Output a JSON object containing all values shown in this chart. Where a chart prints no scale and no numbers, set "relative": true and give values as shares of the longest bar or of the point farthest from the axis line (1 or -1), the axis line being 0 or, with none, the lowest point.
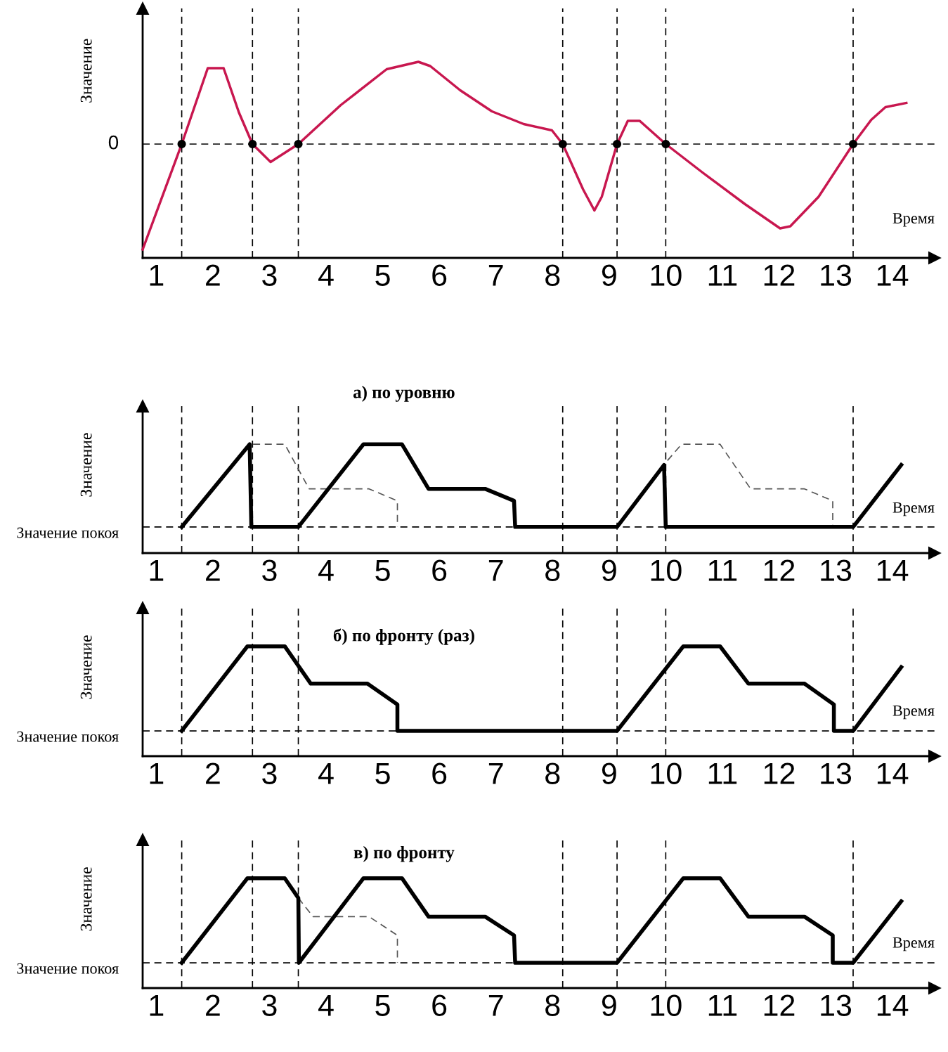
{
  "chart_data": [
    {
      "type": "line",
      "xlabel": "Время",
      "ylabel": "Значение",
      "relative": true,
      "tick_labels": "x",
      "grid": false,
      "legend": false,
      "xlim": [
        0.76,
        14.75
      ],
      "xticks": [
        1,
        2,
        3,
        4,
        5,
        6,
        7,
        8,
        9,
        10,
        11,
        12,
        13,
        14
      ],
      "ref_lines": [
        {
          "axis": "y",
          "value": 0,
          "label": "0",
          "line_style": "dashed"
        },
        {
          "axis": "x",
          "value": 1.45,
          "line_style": "dashed"
        },
        {
          "axis": "x",
          "value": 2.7,
          "line_style": "dashed"
        },
        {
          "axis": "x",
          "value": 3.51,
          "line_style": "dashed"
        },
        {
          "axis": "x",
          "value": 8.18,
          "line_style": "dashed"
        },
        {
          "axis": "x",
          "value": 9.14,
          "line_style": "dashed"
        },
        {
          "axis": "x",
          "value": 10.0,
          "line_style": "dashed"
        },
        {
          "axis": "x",
          "value": 13.31,
          "line_style": "dashed"
        }
      ],
      "series": [
        {
          "color": "#c8174f",
          "line_style": "solid",
          "x": [
            0.76,
            1.45,
            1.91,
            2.19,
            2.46,
            2.7,
            3.02,
            3.51,
            4.26,
            5.07,
            5.63,
            5.84,
            6.37,
            6.93,
            7.49,
            7.99,
            8.18,
            8.54,
            8.74,
            8.87,
            9.14,
            9.33,
            9.54,
            10.0,
            10.65,
            11.4,
            12.02,
            12.2,
            12.7,
            13.31,
            13.63,
            13.88,
            14.25
          ],
          "values": [
            -1.0,
            0,
            0.72,
            0.72,
            0.3,
            0,
            -0.17,
            0,
            0.37,
            0.71,
            0.78,
            0.74,
            0.51,
            0.31,
            0.19,
            0.13,
            0,
            -0.43,
            -0.63,
            -0.5,
            0,
            0.22,
            0.22,
            0,
            -0.27,
            -0.57,
            -0.8,
            -0.78,
            -0.5,
            0,
            0.23,
            0.35,
            0.39
          ]
        },
        {
          "type": "scatter",
          "color": "#000000",
          "marker": "circle",
          "x": [
            1.45,
            2.7,
            3.51,
            8.18,
            9.14,
            10.0,
            13.31
          ],
          "values": [
            0,
            0,
            0,
            0,
            0,
            0,
            0
          ]
        }
      ]
    },
    {
      "type": "line",
      "title": "а) по уровню",
      "xlabel": "Время",
      "ylabel": "Значение",
      "relative": true,
      "tick_labels": "x",
      "grid": false,
      "legend": false,
      "xlim": [
        0.76,
        14.75
      ],
      "xticks": [
        1,
        2,
        3,
        4,
        5,
        6,
        7,
        8,
        9,
        10,
        11,
        12,
        13,
        14
      ],
      "ref_lines": [
        {
          "axis": "y",
          "value": 0.24,
          "label": "Значение покоя",
          "line_style": "dashed"
        },
        {
          "axis": "x",
          "value": 1.45,
          "line_style": "dashed"
        },
        {
          "axis": "x",
          "value": 2.7,
          "line_style": "dashed"
        },
        {
          "axis": "x",
          "value": 3.51,
          "line_style": "dashed"
        },
        {
          "axis": "x",
          "value": 8.18,
          "line_style": "dashed"
        },
        {
          "axis": "x",
          "value": 9.14,
          "line_style": "dashed"
        },
        {
          "axis": "x",
          "value": 10.0,
          "line_style": "dashed"
        },
        {
          "axis": "x",
          "value": 13.31,
          "line_style": "dashed"
        }
      ],
      "series": [
        {
          "color": "#555555",
          "line_style": "dashed",
          "x": [
            2.71,
            3.27,
            3.7,
            4.76,
            5.26,
            5.26
          ],
          "values": [
            1,
            1,
            0.59,
            0.59,
            0.48,
            0.24
          ]
        },
        {
          "color": "#555555",
          "line_style": "dashed",
          "x": [
            10.03,
            10.28,
            10.96,
            11.5,
            12.45,
            12.95,
            12.95
          ],
          "values": [
            0.85,
            1,
            1,
            0.59,
            0.59,
            0.48,
            0.24
          ]
        },
        {
          "color": "#000000",
          "line_style": "solid",
          "x": [
            1.45,
            2.65,
            2.68,
            3.51,
            4.66,
            5.34,
            5.81,
            6.81,
            7.32,
            7.34,
            9.14,
            9.97,
            10.0,
            13.31,
            14.16
          ],
          "values": [
            0.24,
            1,
            0.24,
            0.24,
            1,
            1,
            0.59,
            0.59,
            0.48,
            0.24,
            0.24,
            0.81,
            0.24,
            0.24,
            0.81
          ]
        }
      ]
    },
    {
      "type": "line",
      "title": "б) по фронту (раз)",
      "xlabel": "Время",
      "ylabel": "Значение",
      "relative": true,
      "tick_labels": "x",
      "grid": false,
      "legend": false,
      "xlim": [
        0.76,
        14.75
      ],
      "xticks": [
        1,
        2,
        3,
        4,
        5,
        6,
        7,
        8,
        9,
        10,
        11,
        12,
        13,
        14
      ],
      "ref_lines": [
        {
          "axis": "y",
          "value": 0.23,
          "label": "Значение покоя",
          "line_style": "dashed"
        },
        {
          "axis": "x",
          "value": 1.45,
          "line_style": "dashed"
        },
        {
          "axis": "x",
          "value": 2.7,
          "line_style": "dashed"
        },
        {
          "axis": "x",
          "value": 3.51,
          "line_style": "dashed"
        },
        {
          "axis": "x",
          "value": 8.18,
          "line_style": "dashed"
        },
        {
          "axis": "x",
          "value": 9.14,
          "line_style": "dashed"
        },
        {
          "axis": "x",
          "value": 10.0,
          "line_style": "dashed"
        },
        {
          "axis": "x",
          "value": 13.31,
          "line_style": "dashed"
        }
      ],
      "series": [
        {
          "color": "#000000",
          "line_style": "solid",
          "x": [
            1.45,
            2.61,
            3.27,
            3.73,
            4.73,
            5.26,
            5.26,
            9.14,
            10.31,
            10.96,
            11.46,
            12.45,
            12.97,
            12.97,
            13.31,
            14.16
          ],
          "values": [
            0.23,
            1,
            1,
            0.66,
            0.66,
            0.47,
            0.23,
            0.23,
            1,
            1,
            0.66,
            0.66,
            0.47,
            0.23,
            0.23,
            0.81
          ]
        }
      ]
    },
    {
      "type": "line",
      "title": "в) по фронту",
      "xlabel": "Время",
      "ylabel": "Значение",
      "relative": true,
      "tick_labels": "x",
      "grid": false,
      "legend": false,
      "xlim": [
        0.76,
        14.75
      ],
      "xticks": [
        1,
        2,
        3,
        4,
        5,
        6,
        7,
        8,
        9,
        10,
        11,
        12,
        13,
        14
      ],
      "ref_lines": [
        {
          "axis": "y",
          "value": 0.23,
          "label": "Значение покоя",
          "line_style": "dashed"
        },
        {
          "axis": "x",
          "value": 1.45,
          "line_style": "dashed"
        },
        {
          "axis": "x",
          "value": 2.7,
          "line_style": "dashed"
        },
        {
          "axis": "x",
          "value": 3.51,
          "line_style": "dashed"
        },
        {
          "axis": "x",
          "value": 8.18,
          "line_style": "dashed"
        },
        {
          "axis": "x",
          "value": 9.14,
          "line_style": "dashed"
        },
        {
          "axis": "x",
          "value": 10.0,
          "line_style": "dashed"
        },
        {
          "axis": "x",
          "value": 13.31,
          "line_style": "dashed"
        }
      ],
      "series": [
        {
          "color": "#555555",
          "line_style": "dashed",
          "x": [
            3.51,
            3.77,
            4.76,
            5.26,
            5.26
          ],
          "values": [
            0.82,
            0.65,
            0.65,
            0.48,
            0.23
          ]
        },
        {
          "color": "#000000",
          "line_style": "solid",
          "x": [
            1.45,
            2.61,
            3.27,
            3.51,
            3.52,
            4.66,
            5.34,
            5.81,
            6.81,
            7.32,
            7.34,
            9.14,
            10.31,
            10.96,
            11.46,
            12.45,
            12.95,
            12.95,
            13.31,
            14.16
          ],
          "values": [
            0.23,
            1,
            1,
            0.82,
            0.23,
            1,
            1,
            0.65,
            0.65,
            0.48,
            0.23,
            0.23,
            1,
            1,
            0.65,
            0.65,
            0.48,
            0.23,
            0.23,
            0.79
          ]
        }
      ]
    }
  ]
}
